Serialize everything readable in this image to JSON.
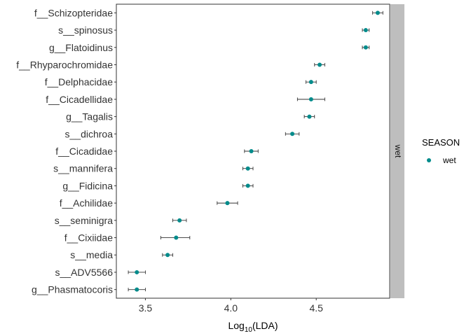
{
  "chart_data": {
    "type": "scatter",
    "title": "",
    "xlabel_base": "Log",
    "xlabel_sub": "10",
    "xlabel_rest": "(LDA)",
    "ylabel": "",
    "xlim": [
      3.33,
      4.93
    ],
    "x_ticks": [
      "3.5",
      "4.0",
      "4.5"
    ],
    "x_tick_values": [
      3.5,
      4.0,
      4.5
    ],
    "facet_label": "wet",
    "point_color": "#008B8B",
    "errorbar_color": "#333333",
    "strip_color": "#BEBEBE",
    "legend": {
      "title": "SEASON",
      "position": "right",
      "items": [
        {
          "label": "wet",
          "color": "#008B8B"
        }
      ]
    },
    "grid": false,
    "points": [
      {
        "label": "f__Schizopteridae",
        "x": 4.86,
        "xmin": 4.83,
        "xmax": 4.89
      },
      {
        "label": "s__spinosus",
        "x": 4.79,
        "xmin": 4.77,
        "xmax": 4.81
      },
      {
        "label": "g__Flatoidinus",
        "x": 4.79,
        "xmin": 4.77,
        "xmax": 4.81
      },
      {
        "label": "f__Rhyparochromidae",
        "x": 4.52,
        "xmin": 4.49,
        "xmax": 4.55
      },
      {
        "label": "f__Delphacidae",
        "x": 4.47,
        "xmin": 4.44,
        "xmax": 4.5
      },
      {
        "label": "f__Cicadellidae",
        "x": 4.47,
        "xmin": 4.39,
        "xmax": 4.55
      },
      {
        "label": "g__Tagalis",
        "x": 4.46,
        "xmin": 4.43,
        "xmax": 4.49
      },
      {
        "label": "s__dichroa",
        "x": 4.36,
        "xmin": 4.32,
        "xmax": 4.4
      },
      {
        "label": "f__Cicadidae",
        "x": 4.12,
        "xmin": 4.08,
        "xmax": 4.16
      },
      {
        "label": "s__mannifera",
        "x": 4.1,
        "xmin": 4.07,
        "xmax": 4.13
      },
      {
        "label": "g__Fidicina",
        "x": 4.1,
        "xmin": 4.07,
        "xmax": 4.13
      },
      {
        "label": "f__Achilidae",
        "x": 3.98,
        "xmin": 3.92,
        "xmax": 4.04
      },
      {
        "label": "s__seminigra",
        "x": 3.7,
        "xmin": 3.66,
        "xmax": 3.74
      },
      {
        "label": "f__Cixiidae",
        "x": 3.68,
        "xmin": 3.59,
        "xmax": 3.76
      },
      {
        "label": "s__media",
        "x": 3.63,
        "xmin": 3.6,
        "xmax": 3.66
      },
      {
        "label": "s__ADV5566",
        "x": 3.45,
        "xmin": 3.4,
        "xmax": 3.5
      },
      {
        "label": "g__Phasmatocoris",
        "x": 3.45,
        "xmin": 3.4,
        "xmax": 3.5
      }
    ]
  }
}
